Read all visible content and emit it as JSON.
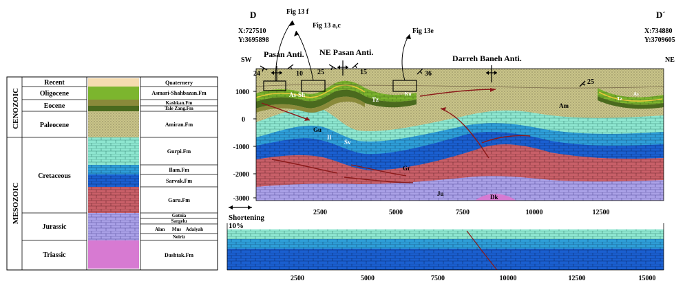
{
  "stratigraphy": {
    "eras": [
      "CENOZOIC",
      "MESOZOIC"
    ],
    "units": [
      {
        "period": "Recent",
        "formation": "Quaternery"
      },
      {
        "period": "Oligocene",
        "formation": "Asmari-Shahbazan.Fm"
      },
      {
        "period": "Eocene",
        "formation": "Kashkan.Fm"
      },
      {
        "period": "",
        "formation": "Tale Zang.Fm"
      },
      {
        "period": "Paleocene",
        "formation": "Amiran.Fm"
      },
      {
        "period": "",
        "formation": "Gurpi.Fm"
      },
      {
        "period": "Cretaceous",
        "formation": "Ilam.Fm"
      },
      {
        "period": "",
        "formation": "Sarvak.Fm"
      },
      {
        "period": "",
        "formation": "Garu.Fm"
      },
      {
        "period": "Jurassic",
        "formation": "Gotnia"
      },
      {
        "period": "",
        "formation": "Sargelu"
      },
      {
        "period": "",
        "formation": "Alan      Mus    Adaiyah"
      },
      {
        "period": "",
        "formation": "Neiriz"
      },
      {
        "period": "Triassic",
        "formation": "Dashtak.Fm"
      }
    ]
  },
  "section": {
    "start_label": "D",
    "end_label": "D´",
    "start_coords": [
      "X:727510",
      "Y:3695898"
    ],
    "end_coords": [
      "X:734880",
      "Y:3709605"
    ],
    "dir_left": "SW",
    "dir_right": "NE",
    "anticlines": [
      "Pasan Anti.",
      "NE Pasan Anti.",
      "Darreh Baneh Anti."
    ],
    "figure_refs": [
      "Fig 13 f",
      "Fig 13 a,c",
      "Fig 13e"
    ],
    "dips": [
      "24",
      "10",
      "25",
      "15",
      "36",
      "25"
    ],
    "depth_ticks": [
      "1000",
      "0",
      "-1000",
      "-2000",
      "-3000"
    ],
    "distance_ticks": [
      "2500",
      "5000",
      "7500",
      "10000",
      "12500"
    ],
    "unit_labels": [
      "As-Sh",
      "Tz",
      "Am",
      "Gu",
      "Il",
      "Sv",
      "Gr",
      "Ju",
      "Dk",
      "Kn",
      "Tz",
      "As"
    ]
  },
  "restored": {
    "shortening_label": "Shortening",
    "shortening_value": "10%",
    "distance_ticks": [
      "2500",
      "5000",
      "7500",
      "10000",
      "12500",
      "15000"
    ]
  },
  "colors": {
    "recent": "#f5dcb0",
    "asmari": "#7cb52e",
    "kashkan": "#8a8a3a",
    "talezang": "#4a6a1e",
    "amiran": "#c9c48a",
    "gurpi": "#8ee6d0",
    "ilam": "#2e9ed8",
    "sarvak": "#1a5fd0",
    "garu": "#c85f68",
    "jurassic": "#a9a0e6",
    "dashtak": "#d77ad2",
    "fault": "#8b1a1a"
  }
}
